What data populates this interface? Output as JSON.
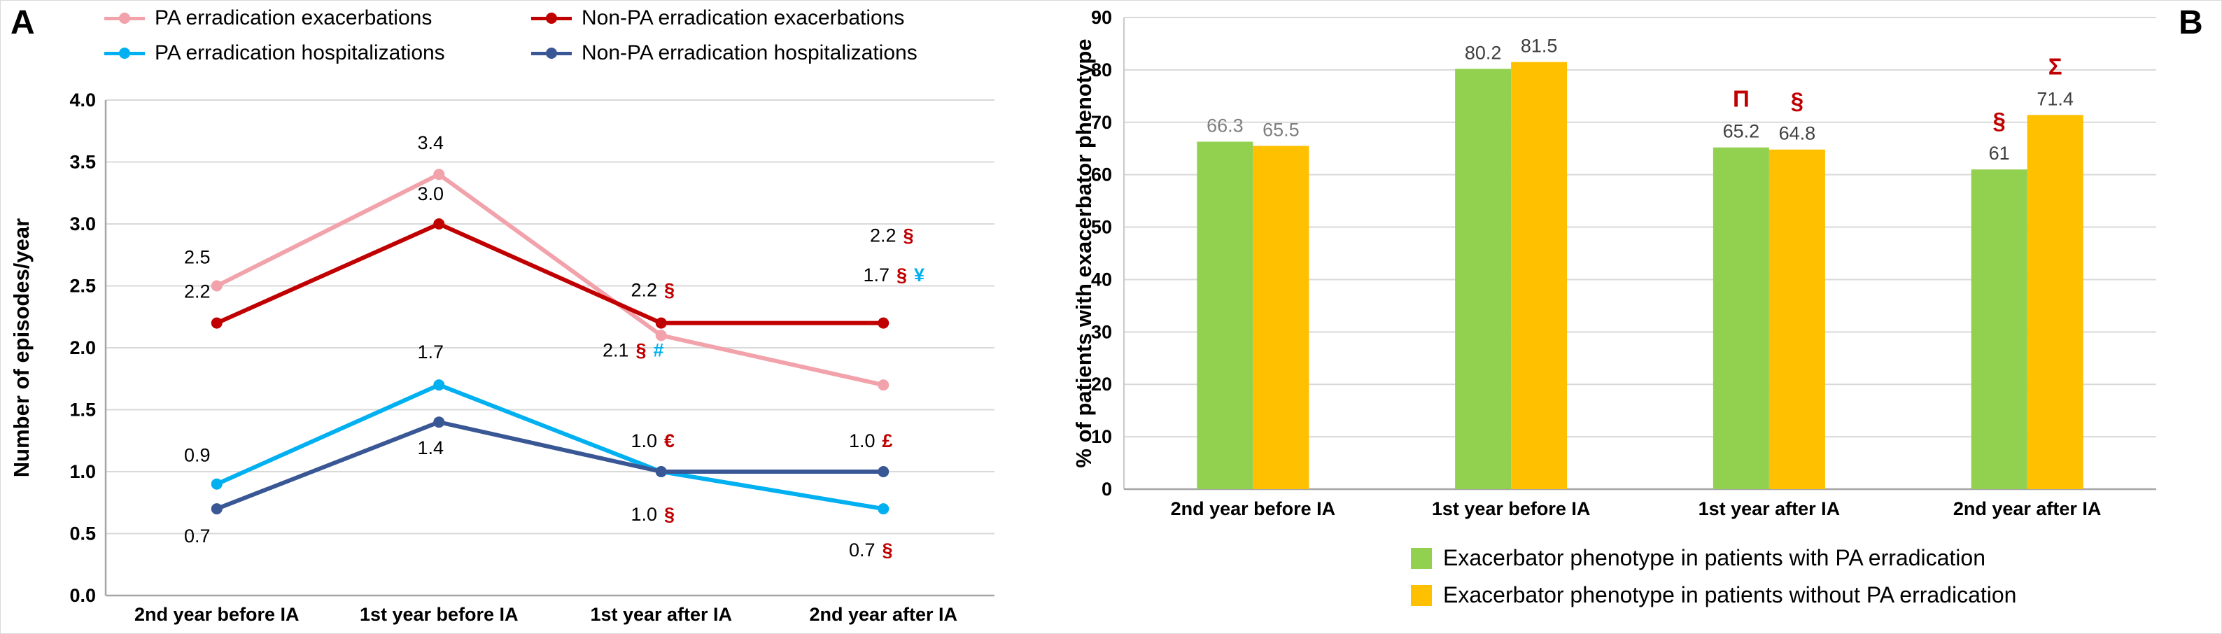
{
  "chart_data": [
    {
      "panel_label": "A",
      "type": "line",
      "title": "",
      "xlabel": "",
      "ylabel": "Number of episodes/year",
      "ylim": [
        0.0,
        4.0
      ],
      "ystep": 0.5,
      "ytick_decimals": 1,
      "grid": true,
      "legend_position": "top",
      "categories": [
        "2nd year before IA",
        "1st year before IA",
        "1st year after IA",
        "2nd year after IA"
      ],
      "series": [
        {
          "name": "PA erradication exacerbations",
          "color": "#f2a2aa",
          "values": [
            2.5,
            3.4,
            2.1,
            1.7
          ],
          "point_labels": [
            {
              "value": "2.5",
              "symbols": []
            },
            {
              "value": "3.4",
              "symbols": []
            },
            {
              "value": "2.1",
              "symbols": [
                {
                  "text": "§",
                  "color": "#c00000"
                },
                {
                  "text": "#",
                  "color": "#00b0f0"
                }
              ]
            },
            {
              "value": "1.7",
              "symbols": [
                {
                  "text": "§",
                  "color": "#c00000"
                },
                {
                  "text": "¥",
                  "color": "#00b0f0"
                }
              ]
            }
          ]
        },
        {
          "name": "Non-PA erradication exacerbations",
          "color": "#c00000",
          "values": [
            2.2,
            3.0,
            2.2,
            2.2
          ],
          "point_labels": [
            {
              "value": "2.2",
              "symbols": []
            },
            {
              "value": "3.0",
              "symbols": []
            },
            {
              "value": "2.2",
              "symbols": [
                {
                  "text": "§",
                  "color": "#c00000"
                }
              ]
            },
            {
              "value": "2.2",
              "symbols": [
                {
                  "text": "§",
                  "color": "#c00000"
                }
              ]
            }
          ]
        },
        {
          "name": "PA erradication hospitalizations",
          "color": "#00b0f0",
          "values": [
            0.9,
            1.7,
            1.0,
            0.7
          ],
          "point_labels": [
            {
              "value": "0.9",
              "symbols": []
            },
            {
              "value": "1.7",
              "symbols": []
            },
            {
              "value": "1.0",
              "symbols": [
                {
                  "text": "§",
                  "color": "#c00000"
                }
              ]
            },
            {
              "value": "0.7",
              "symbols": [
                {
                  "text": "§",
                  "color": "#c00000"
                }
              ]
            }
          ]
        },
        {
          "name": "Non-PA erradication hospitalizations",
          "color": "#3a5795",
          "values": [
            0.7,
            1.4,
            1.0,
            1.0
          ],
          "point_labels": [
            {
              "value": "0.7",
              "symbols": []
            },
            {
              "value": "1.4",
              "symbols": []
            },
            {
              "value": "1.0",
              "symbols": [
                {
                  "text": "€",
                  "color": "#c00000"
                }
              ]
            },
            {
              "value": "1.0",
              "symbols": [
                {
                  "text": "£",
                  "color": "#c00000"
                }
              ]
            }
          ]
        }
      ]
    },
    {
      "panel_label": "B",
      "type": "bar",
      "title": "",
      "xlabel": "",
      "ylabel": "% of patients with exacerbator phenotype",
      "ylim": [
        0,
        90
      ],
      "ystep": 10,
      "ytick_decimals": 0,
      "grid": true,
      "legend_position": "bottom",
      "categories": [
        "2nd year before IA",
        "1st year before IA",
        "1st year after IA",
        "2nd year after IA"
      ],
      "series": [
        {
          "name": "Exacerbator phenotype in patients with PA erradication",
          "color": "#92d050",
          "values": [
            66.3,
            80.2,
            65.2,
            61
          ],
          "value_labels": [
            "66.3",
            "80.2",
            "65.2",
            "61"
          ],
          "value_label_colors": [
            "#7f7f7f",
            "#3f3f3f",
            "#3f3f3f",
            "#3f3f3f"
          ],
          "annotations": [
            null,
            null,
            {
              "text": "Π",
              "color": "#c00000"
            },
            {
              "text": "§",
              "color": "#c00000"
            }
          ]
        },
        {
          "name": "Exacerbator phenotype in patients without PA erradication",
          "color": "#ffc000",
          "values": [
            65.5,
            81.5,
            64.8,
            71.4
          ],
          "value_labels": [
            "65.5",
            "81.5",
            "64.8",
            "71.4"
          ],
          "value_label_colors": [
            "#7f7f7f",
            "#3f3f3f",
            "#3f3f3f",
            "#3f3f3f"
          ],
          "annotations": [
            null,
            null,
            {
              "text": "§",
              "color": "#c00000"
            },
            {
              "text": "Σ",
              "color": "#c00000"
            }
          ]
        }
      ]
    }
  ],
  "colors": {
    "gridline": "#d9d9d9",
    "axis": "#a6a6a6",
    "tick_text": "#000000",
    "data_label_text": "#000000",
    "annotation_red": "#c00000",
    "annotation_blue": "#00b0f0"
  }
}
